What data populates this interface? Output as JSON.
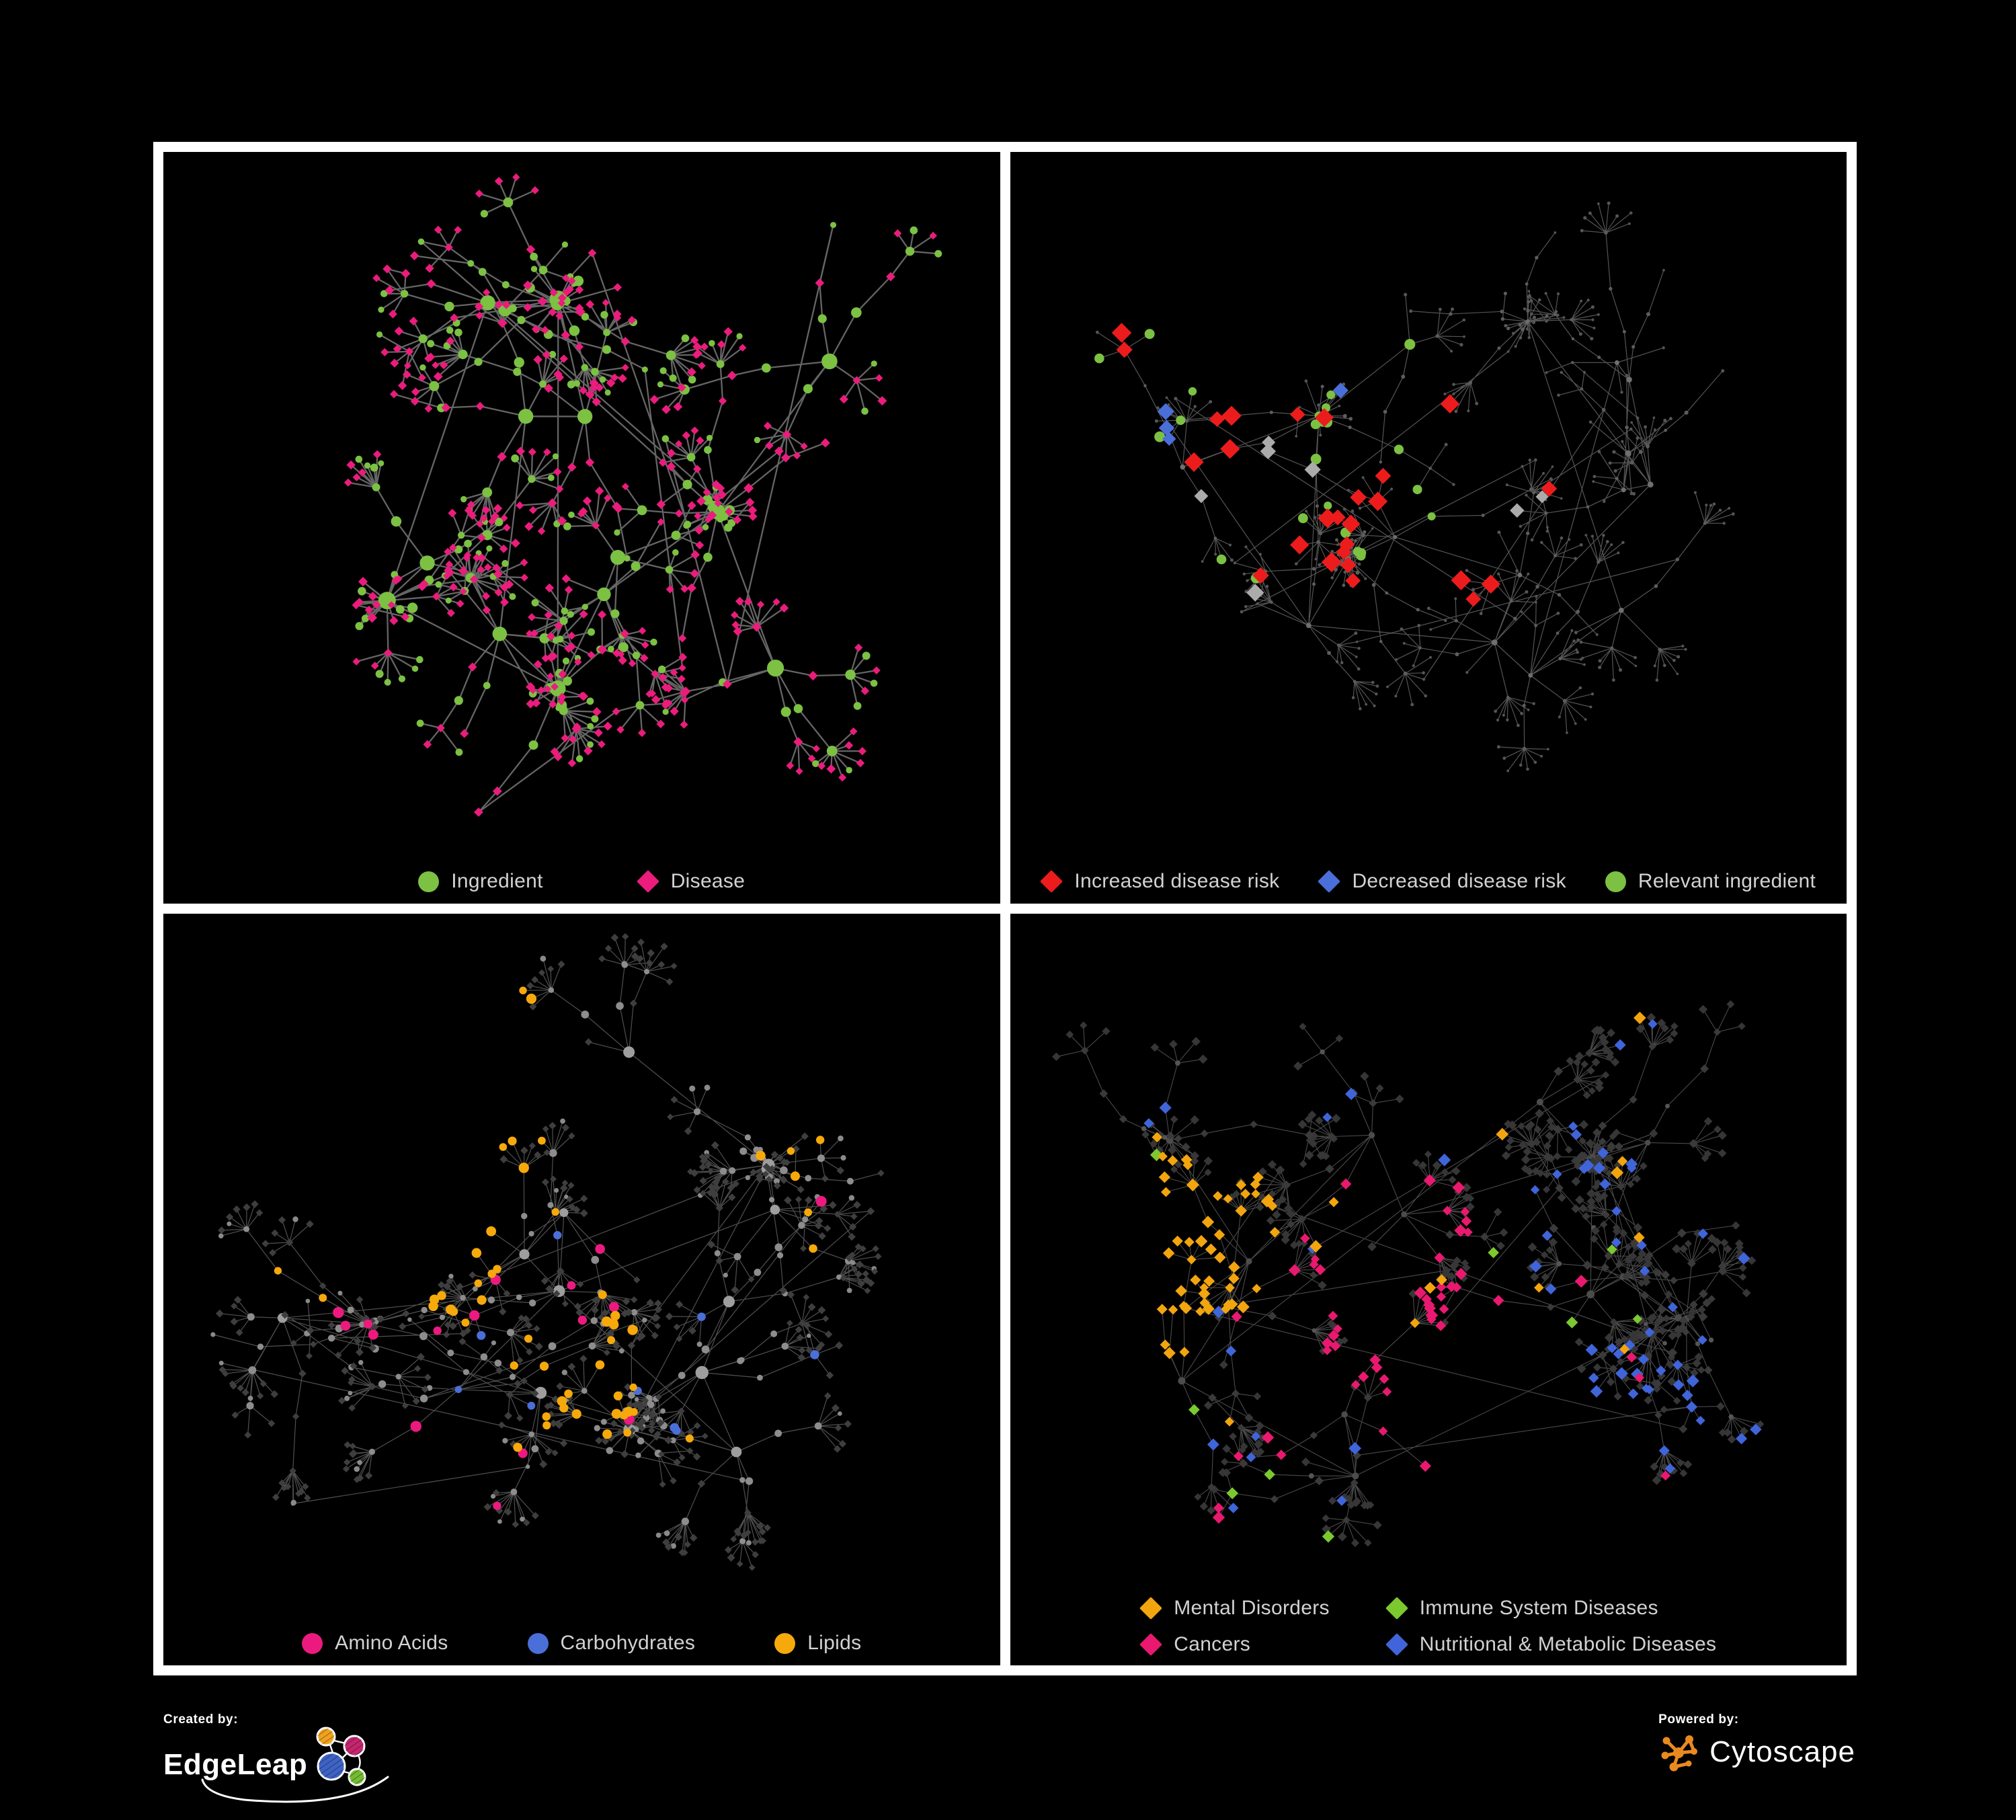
{
  "page": {
    "background": "#000000",
    "frame_color": "#ffffff"
  },
  "panels": [
    {
      "id": "ingredient-disease",
      "legend": [
        {
          "shape": "circle",
          "color": "#7CC142",
          "label": "Ingredient"
        },
        {
          "shape": "diamond",
          "color": "#EA1C7C",
          "label": "Disease"
        }
      ],
      "network": {
        "seed": 1013,
        "hubs": 15,
        "branchMin": 3,
        "branchMax": 7,
        "stepMin": 45,
        "stepMax": 95,
        "fanProb": 0.72,
        "fanMin": 3,
        "fanMax": 9,
        "leafMin": 26,
        "leafMax": 52,
        "cross": 10,
        "clumps": 4,
        "edgeColor": "#6a6a6a",
        "edgeWidth": 2.3,
        "edgeOpacity": 0.95,
        "round": true,
        "roles": {
          "hub": [
            {
              "shape": "circle",
              "color": "#7CC142",
              "min": 9,
              "max": 14,
              "p": 1
            }
          ],
          "mid": [
            {
              "shape": "circle",
              "color": "#7CC142",
              "min": 5,
              "max": 8,
              "p": 0.6
            },
            {
              "shape": "diamond",
              "color": "#EA1C7C",
              "min": 6,
              "max": 7.5,
              "p": 0.4
            }
          ],
          "leaf": [
            {
              "shape": "diamond",
              "color": "#EA1C7C",
              "min": 5.5,
              "max": 7,
              "p": 0.78
            },
            {
              "shape": "circle",
              "color": "#7CC142",
              "min": 4.5,
              "max": 6,
              "p": 0.22
            }
          ]
        },
        "highlights": []
      }
    },
    {
      "id": "disease-risk",
      "legend": [
        {
          "shape": "diamond",
          "color": "#ED1C1C",
          "label": "Increased disease risk"
        },
        {
          "shape": "diamond",
          "color": "#4A6FD8",
          "label": "Decreased disease risk"
        },
        {
          "shape": "circle",
          "color": "#7CC142",
          "label": "Relevant ingredient"
        }
      ],
      "network": {
        "seed": 2027,
        "hubs": 16,
        "branchMin": 3,
        "branchMax": 6,
        "stepMin": 40,
        "stepMax": 85,
        "fanProb": 0.7,
        "fanMin": 3,
        "fanMax": 8,
        "leafMin": 24,
        "leafMax": 48,
        "cross": 8,
        "clumps": 3,
        "edgeColor": "#5e5e5e",
        "edgeWidth": 1.2,
        "edgeOpacity": 0.9,
        "round": false,
        "roles": {
          "hub": [
            {
              "shape": "circle",
              "color": "#6f6f6f",
              "min": 3,
              "max": 4.5,
              "p": 1
            }
          ],
          "mid": [
            {
              "shape": "circle",
              "color": "#5d5d5d",
              "min": 2.2,
              "max": 3,
              "p": 1
            }
          ],
          "leaf": [
            {
              "shape": "circle",
              "color": "#555555",
              "min": 1.8,
              "max": 2.6,
              "p": 1
            }
          ]
        },
        "highlights": [
          {
            "shape": "diamond",
            "color": "#ED1C1C",
            "size": 13,
            "count": 26,
            "regions": [
              [
                0.25,
                0.28,
                0.14
              ],
              [
                0.4,
                0.4,
                0.18
              ],
              [
                0.58,
                0.46,
                0.14
              ],
              [
                0.33,
                0.52,
                0.18
              ],
              [
                0.74,
                0.78,
                0.1
              ]
            ]
          },
          {
            "shape": "diamond",
            "color": "#4A6FD8",
            "size": 12,
            "count": 8,
            "regions": [
              [
                0.14,
                0.4,
                0.08
              ],
              [
                0.44,
                0.3,
                0.06
              ],
              [
                0.86,
                0.27,
                0.07
              ]
            ]
          },
          {
            "shape": "diamond",
            "color": "#ABABAB",
            "size": 11,
            "count": 7,
            "regions": [
              [
                0.33,
                0.42,
                0.22
              ],
              [
                0.55,
                0.48,
                0.12
              ]
            ]
          },
          {
            "shape": "circle",
            "color": "#7CC142",
            "size": 7,
            "count": 24,
            "regions": [
              [
                0.3,
                0.38,
                0.22
              ],
              [
                0.5,
                0.4,
                0.15
              ],
              [
                0.15,
                0.3,
                0.1
              ],
              [
                0.7,
                0.86,
                0.08
              ]
            ]
          }
        ]
      }
    },
    {
      "id": "nutrient-groups",
      "legend": [
        {
          "shape": "circle",
          "color": "#EC1A7E",
          "label": "Amino Acids"
        },
        {
          "shape": "circle",
          "color": "#4A6FD8",
          "label": "Carbohydrates"
        },
        {
          "shape": "circle",
          "color": "#F6A90B",
          "label": "Lipids"
        }
      ],
      "network": {
        "seed": 3041,
        "hubs": 15,
        "branchMin": 3,
        "branchMax": 6,
        "stepMin": 42,
        "stepMax": 90,
        "fanProb": 0.75,
        "fanMin": 3,
        "fanMax": 12,
        "leafMin": 24,
        "leafMax": 50,
        "cross": 8,
        "clumps": 3,
        "edgeColor": "#5e5e5e",
        "edgeWidth": 1.2,
        "edgeOpacity": 0.85,
        "round": false,
        "roles": {
          "hub": [
            {
              "shape": "circle",
              "color": "#9E9E9E",
              "min": 6.5,
              "max": 10,
              "p": 1
            }
          ],
          "mid": [
            {
              "shape": "circle",
              "color": "#8D8D8D",
              "min": 4,
              "max": 6,
              "p": 0.8
            },
            {
              "shape": "diamond",
              "color": "#3E3E3E",
              "min": 5,
              "max": 6,
              "p": 0.2
            }
          ],
          "leaf": [
            {
              "shape": "diamond",
              "color": "#3E3E3E",
              "min": 4.8,
              "max": 6,
              "p": 0.85
            },
            {
              "shape": "circle",
              "color": "#8A8A8A",
              "min": 3,
              "max": 4.5,
              "p": 0.15
            }
          ]
        },
        "highlights": [
          {
            "shape": "circle",
            "color": "#F6A90B",
            "size": 6.5,
            "count": 42,
            "regions": [
              [
                0.3,
                0.22,
                0.17
              ],
              [
                0.36,
                0.42,
                0.12
              ],
              [
                0.5,
                0.6,
                0.09
              ]
            ]
          },
          {
            "shape": "circle",
            "color": "#F6A90B",
            "size": 6.5,
            "count": 12,
            "regions": [
              [
                0.5,
                0.45,
                0.45
              ]
            ]
          },
          {
            "shape": "circle",
            "color": "#4A6FD8",
            "size": 6,
            "count": 9,
            "regions": [
              [
                0.3,
                0.22,
                0.14
              ],
              [
                0.55,
                0.6,
                0.25
              ]
            ]
          },
          {
            "shape": "circle",
            "color": "#EC1A7E",
            "size": 7,
            "count": 16,
            "regions": [
              [
                0.45,
                0.7,
                0.3
              ],
              [
                0.15,
                0.55,
                0.15
              ],
              [
                0.85,
                0.3,
                0.12
              ]
            ]
          }
        ]
      }
    },
    {
      "id": "disease-categories",
      "legend": [
        {
          "shape": "diamond",
          "color": "#F2A50F",
          "label": "Mental Disorders"
        },
        {
          "shape": "diamond",
          "color": "#7CC92F",
          "label": "Immune System Diseases"
        },
        {
          "shape": "diamond",
          "color": "#E8196E",
          "label": "Cancers"
        },
        {
          "shape": "diamond",
          "color": "#4064D9",
          "label": "Nutritional & Metabolic Diseases"
        }
      ],
      "network": {
        "seed": 4099,
        "hubs": 16,
        "branchMin": 3,
        "branchMax": 6,
        "stepMin": 40,
        "stepMax": 85,
        "fanProb": 0.75,
        "fanMin": 3,
        "fanMax": 12,
        "leafMin": 24,
        "leafMax": 48,
        "cross": 9,
        "clumps": 4,
        "edgeColor": "#5c5c5c",
        "edgeWidth": 1.1,
        "edgeOpacity": 0.8,
        "round": false,
        "roles": {
          "hub": [
            {
              "shape": "circle",
              "color": "#4C4C4C",
              "min": 4,
              "max": 6,
              "p": 1
            }
          ],
          "mid": [
            {
              "shape": "diamond",
              "color": "#3A3A3A",
              "min": 5.5,
              "max": 7,
              "p": 0.9
            },
            {
              "shape": "circle",
              "color": "#555555",
              "min": 3,
              "max": 4,
              "p": 0.1
            }
          ],
          "leaf": [
            {
              "shape": "diamond",
              "color": "#363636",
              "min": 5.5,
              "max": 7,
              "p": 1
            }
          ]
        },
        "highlights": [
          {
            "shape": "diamond",
            "color": "#F2A50F",
            "size": 8,
            "count": 60,
            "regions": [
              [
                0.15,
                0.5,
                0.15
              ],
              [
                0.22,
                0.42,
                0.1
              ]
            ]
          },
          {
            "shape": "diamond",
            "color": "#F2A50F",
            "size": 8,
            "count": 14,
            "regions": [
              [
                0.45,
                0.25,
                0.35
              ],
              [
                0.5,
                0.75,
                0.3
              ]
            ]
          },
          {
            "shape": "diamond",
            "color": "#E8196E",
            "size": 8,
            "count": 40,
            "regions": [
              [
                0.46,
                0.52,
                0.16
              ],
              [
                0.52,
                0.62,
                0.12
              ]
            ]
          },
          {
            "shape": "diamond",
            "color": "#E8196E",
            "size": 8,
            "count": 12,
            "regions": [
              [
                0.88,
                0.28,
                0.08
              ],
              [
                0.5,
                0.8,
                0.35
              ],
              [
                0.25,
                0.85,
                0.12
              ]
            ]
          },
          {
            "shape": "diamond",
            "color": "#4064D9",
            "size": 8,
            "count": 22,
            "regions": [
              [
                0.7,
                0.6,
                0.1
              ],
              [
                0.75,
                0.67,
                0.08
              ]
            ]
          },
          {
            "shape": "diamond",
            "color": "#4064D9",
            "size": 8,
            "count": 40,
            "regions": [
              [
                0.82,
                0.3,
                0.16
              ],
              [
                0.3,
                0.73,
                0.18
              ],
              [
                0.6,
                0.15,
                0.25
              ],
              [
                0.55,
                0.45,
                0.45
              ]
            ]
          },
          {
            "shape": "diamond",
            "color": "#7CC92F",
            "size": 8,
            "count": 9,
            "regions": [
              [
                0.45,
                0.5,
                0.35
              ]
            ]
          }
        ]
      }
    }
  ],
  "footer": {
    "created_by_label": "Created by:",
    "created_by_name": "EdgeLeap",
    "powered_by_label": "Powered by:",
    "powered_by_name": "Cytoscape",
    "edgeleap_colors": {
      "orange": "#F0A21E",
      "pink": "#C4256E",
      "blue": "#3E63C4",
      "green": "#76BC32"
    },
    "cytoscape_orange": "#E98A1F"
  }
}
